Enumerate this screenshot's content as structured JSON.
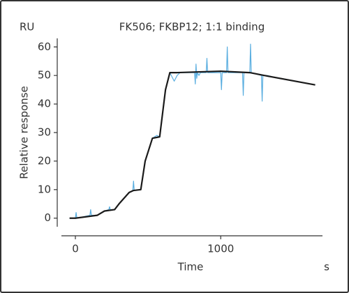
{
  "chart_data": {
    "type": "line",
    "title": "FK506; FKBP12; 1:1 binding",
    "y_unit": "RU",
    "y_label": "Relative response",
    "x_label": "Time",
    "x_unit": "s",
    "xlim": [
      -96,
      1700
    ],
    "xticks": [
      0,
      1000
    ],
    "ylim": [
      -3,
      63
    ],
    "yticks": [
      0,
      10,
      20,
      30,
      40,
      50,
      60
    ],
    "series": [
      {
        "color": "#5aaee0",
        "width": 1.2,
        "x": [
          -40,
          0,
          5,
          10,
          100,
          105,
          110,
          150,
          200,
          230,
          235,
          240,
          270,
          300,
          370,
          395,
          400,
          405,
          450,
          480,
          530,
          560,
          580,
          620,
          650,
          680,
          700,
          720,
          800,
          820,
          825,
          830,
          835,
          840,
          850,
          860,
          900,
          905,
          910,
          950,
          1000,
          1005,
          1010,
          1040,
          1045,
          1050,
          1100,
          1150,
          1155,
          1160,
          1200,
          1205,
          1210,
          1280,
          1285,
          1290,
          1320,
          1400,
          1650
        ],
        "values": [
          0,
          0,
          2,
          0,
          1,
          3,
          1,
          1,
          2.5,
          3,
          4,
          3,
          3,
          5,
          9,
          9.5,
          13,
          9.7,
          10,
          20,
          28,
          29,
          28.5,
          45,
          51,
          48,
          50,
          51,
          51,
          51,
          47,
          54,
          49,
          51,
          50,
          51,
          51,
          56,
          51,
          51,
          51,
          45,
          51,
          51,
          60,
          51,
          51,
          51,
          43,
          51,
          51,
          61,
          51,
          50,
          41,
          50,
          50,
          49,
          46.7
        ]
      },
      {
        "color": "#1a1a1a",
        "width": 2.2,
        "x": [
          -40,
          0,
          150,
          200,
          270,
          300,
          370,
          400,
          450,
          480,
          530,
          580,
          620,
          650,
          700,
          1000,
          1200,
          1300,
          1650
        ],
        "values": [
          0,
          0,
          1,
          2.5,
          3,
          5,
          9,
          9.7,
          10,
          20,
          28,
          28.5,
          45,
          51,
          51,
          51.5,
          51,
          50,
          46.7
        ]
      }
    ]
  }
}
